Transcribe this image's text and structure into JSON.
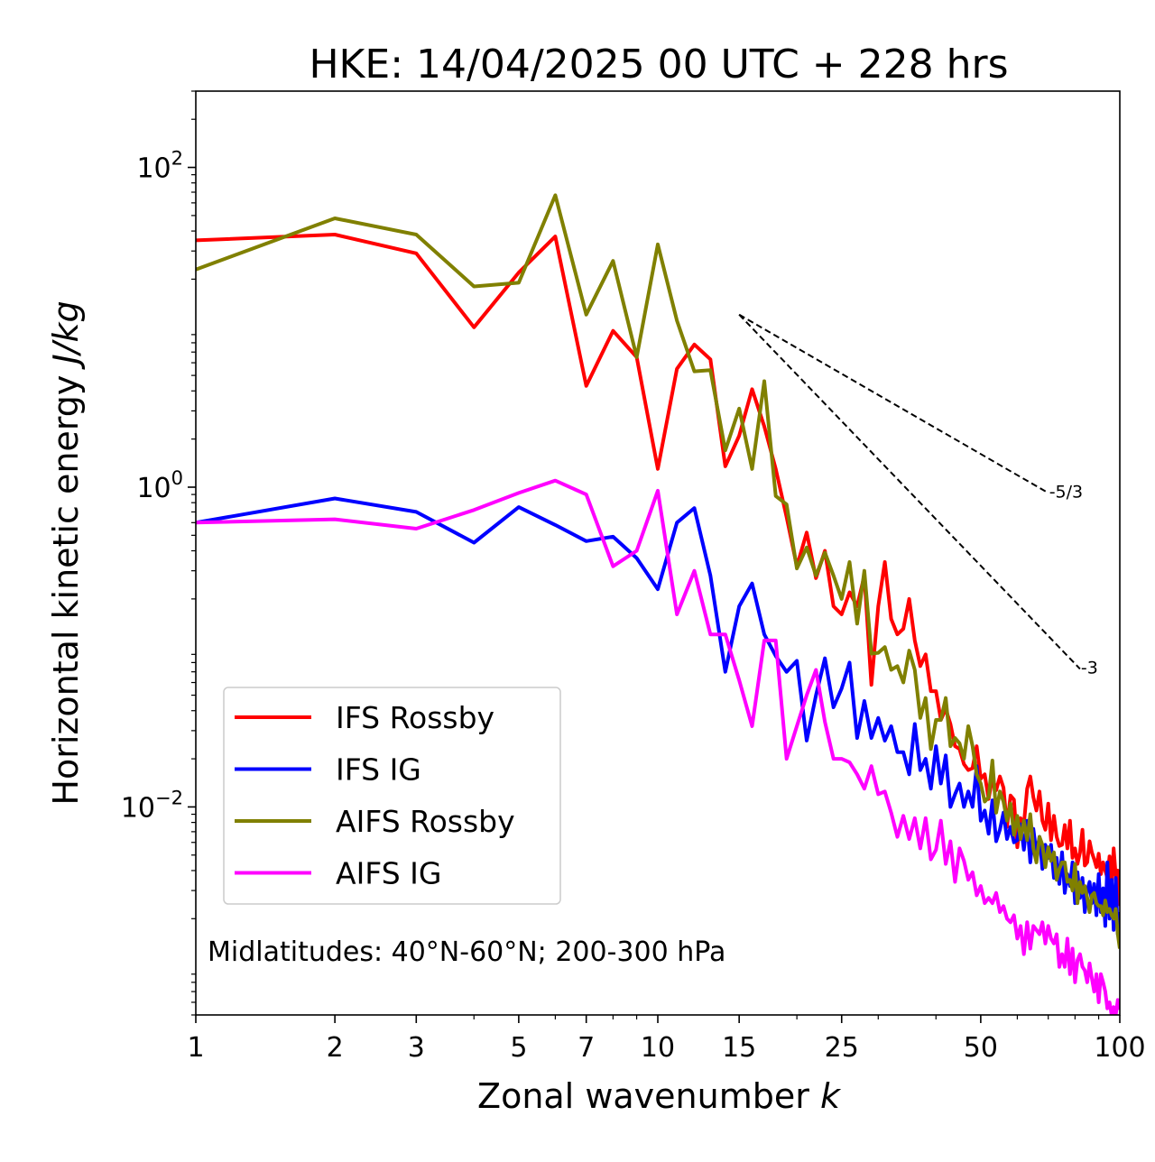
{
  "chart_data": {
    "type": "line",
    "title": "HKE: 14/04/2025 00 UTC + 228 hrs",
    "xlabel": "Zonal wavenumber",
    "xlabel_var": "k",
    "ylabel": "Horizontal kinetic energy",
    "ylabel_units": "J/kg",
    "xscale": "log",
    "yscale": "log",
    "xlim": [
      1,
      100
    ],
    "ylim": [
      0.0005,
      300
    ],
    "xticks": [
      1,
      2,
      3,
      5,
      7,
      10,
      15,
      25,
      50,
      100
    ],
    "xtick_labels": [
      "1",
      "2",
      "3",
      "5",
      "7",
      "10",
      "15",
      "25",
      "50",
      "100"
    ],
    "yticks": [
      {
        "value": 100,
        "base": "10",
        "exp": "2"
      },
      {
        "value": 1,
        "base": "10",
        "exp": "0"
      },
      {
        "value": 0.01,
        "base": "10",
        "exp": "−2"
      }
    ],
    "annotation": "Midlatitudes: 40°N-60°N; 200-300 hPa",
    "legend_position": "lower-left",
    "reference_lines": [
      {
        "label": "-5/3",
        "x": [
          15,
          70
        ],
        "y": [
          12,
          0.92
        ],
        "color": "#000000"
      },
      {
        "label": "-3",
        "x": [
          15,
          82
        ],
        "y": [
          12,
          0.073
        ],
        "color": "#000000"
      }
    ],
    "series": [
      {
        "name": "IFS Rossby",
        "color": "#ff0000",
        "x": [
          1,
          2,
          3,
          4,
          5,
          6,
          7,
          8,
          9,
          10,
          11,
          12,
          13,
          14,
          15,
          16,
          17,
          18,
          19,
          20,
          21,
          22,
          23,
          24,
          25,
          26,
          27,
          28,
          29,
          30,
          31,
          32,
          33,
          34,
          35,
          36,
          37,
          38,
          39,
          40,
          41,
          42,
          43,
          44,
          45,
          46,
          47,
          48,
          49,
          50,
          51,
          52,
          53,
          54,
          55,
          56,
          57,
          58,
          59,
          60,
          61,
          62,
          63,
          64,
          65,
          66,
          67,
          68,
          69,
          70,
          71,
          72,
          73,
          74,
          75,
          76,
          77,
          78,
          79,
          80,
          81,
          82,
          83,
          84,
          85,
          86,
          87,
          88,
          89,
          90,
          91,
          92,
          93,
          94,
          95,
          96,
          97,
          98,
          99,
          100
        ],
        "y": [
          35,
          38,
          29,
          10,
          22,
          37,
          4.3,
          9.5,
          6.5,
          1.3,
          5.5,
          7.8,
          6.3,
          1.35,
          2.1,
          4.1,
          2.4,
          1.3,
          0.65,
          0.32,
          0.52,
          0.27,
          0.4,
          0.18,
          0.16,
          0.22,
          0.18,
          0.28,
          0.058,
          0.18,
          0.34,
          0.15,
          0.12,
          0.13,
          0.2,
          0.11,
          0.076,
          0.09,
          0.053,
          0.053,
          0.035,
          0.041,
          0.033,
          0.024,
          0.023,
          0.0185,
          0.017,
          0.0175,
          0.024,
          0.015,
          0.016,
          0.0112,
          0.0152,
          0.0127,
          0.0155,
          0.0132,
          0.0075,
          0.0118,
          0.0111,
          0.0056,
          0.0085,
          0.0078,
          0.013,
          0.0155,
          0.0115,
          0.0095,
          0.0125,
          0.0082,
          0.0072,
          0.0105,
          0.0062,
          0.0088,
          0.0065,
          0.0057,
          0.0058,
          0.0077,
          0.0055,
          0.0082,
          0.0048,
          0.0055,
          0.0044,
          0.0052,
          0.0072,
          0.0043,
          0.0045,
          0.0061,
          0.0052,
          0.0047,
          0.0042,
          0.0051,
          0.0038,
          0.0045,
          0.004,
          0.0036,
          0.0049,
          0.0033,
          0.0055,
          0.0037,
          0.004,
          0.0024
        ]
      },
      {
        "name": "IFS IG",
        "color": "#0000ff",
        "x": [
          1,
          2,
          3,
          4,
          5,
          6,
          7,
          8,
          9,
          10,
          11,
          12,
          13,
          14,
          15,
          16,
          17,
          18,
          19,
          20,
          21,
          22,
          23,
          24,
          25,
          26,
          27,
          28,
          29,
          30,
          31,
          32,
          33,
          34,
          35,
          36,
          37,
          38,
          39,
          40,
          41,
          42,
          43,
          44,
          45,
          46,
          47,
          48,
          49,
          50,
          51,
          52,
          53,
          54,
          55,
          56,
          57,
          58,
          59,
          60,
          61,
          62,
          63,
          64,
          65,
          66,
          67,
          68,
          69,
          70,
          71,
          72,
          73,
          74,
          75,
          76,
          77,
          78,
          79,
          80,
          81,
          82,
          83,
          84,
          85,
          86,
          87,
          88,
          89,
          90,
          91,
          92,
          93,
          94,
          95,
          96,
          97,
          98,
          99,
          100
        ],
        "y": [
          0.6,
          0.85,
          0.7,
          0.45,
          0.75,
          0.58,
          0.46,
          0.49,
          0.36,
          0.23,
          0.6,
          0.74,
          0.28,
          0.07,
          0.18,
          0.25,
          0.12,
          0.088,
          0.07,
          0.082,
          0.026,
          0.05,
          0.085,
          0.042,
          0.055,
          0.08,
          0.027,
          0.046,
          0.027,
          0.036,
          0.026,
          0.032,
          0.022,
          0.022,
          0.016,
          0.033,
          0.017,
          0.02,
          0.013,
          0.024,
          0.014,
          0.021,
          0.01,
          0.012,
          0.014,
          0.01,
          0.0125,
          0.01,
          0.018,
          0.0082,
          0.0095,
          0.0068,
          0.011,
          0.0061,
          0.0072,
          0.0092,
          0.0063,
          0.0075,
          0.006,
          0.0062,
          0.0078,
          0.0054,
          0.0082,
          0.0045,
          0.0073,
          0.0051,
          0.0065,
          0.0041,
          0.0058,
          0.0048,
          0.0058,
          0.0036,
          0.0048,
          0.0033,
          0.0052,
          0.0029,
          0.0038,
          0.0032,
          0.0045,
          0.0025,
          0.0039,
          0.0027,
          0.0036,
          0.0022,
          0.003,
          0.0034,
          0.0025,
          0.0033,
          0.0021,
          0.0038,
          0.0022,
          0.0031,
          0.0018,
          0.0045,
          0.002,
          0.0035,
          0.0017,
          0.0036,
          0.0016,
          0.0022
        ]
      },
      {
        "name": "AIFS Rossby",
        "color": "#808000",
        "x": [
          1,
          2,
          3,
          4,
          5,
          6,
          7,
          8,
          9,
          10,
          11,
          12,
          13,
          14,
          15,
          16,
          17,
          18,
          19,
          20,
          21,
          22,
          23,
          24,
          25,
          26,
          27,
          28,
          29,
          30,
          31,
          32,
          33,
          34,
          35,
          36,
          37,
          38,
          39,
          40,
          41,
          42,
          43,
          44,
          45,
          46,
          47,
          48,
          49,
          50,
          51,
          52,
          53,
          54,
          55,
          56,
          57,
          58,
          59,
          60,
          61,
          62,
          63,
          64,
          65,
          66,
          67,
          68,
          69,
          70,
          71,
          72,
          73,
          74,
          75,
          76,
          77,
          78,
          79,
          80,
          81,
          82,
          83,
          84,
          85,
          86,
          87,
          88,
          89,
          90,
          91,
          92,
          93,
          94,
          95,
          96,
          97,
          98,
          99,
          100
        ],
        "y": [
          23,
          48,
          38,
          18,
          19,
          67,
          12,
          26,
          6.5,
          33,
          11,
          5.3,
          5.4,
          1.7,
          3.1,
          1.3,
          4.6,
          0.88,
          0.78,
          0.31,
          0.42,
          0.28,
          0.39,
          0.28,
          0.2,
          0.34,
          0.14,
          0.3,
          0.091,
          0.092,
          0.1,
          0.072,
          0.076,
          0.06,
          0.095,
          0.072,
          0.036,
          0.048,
          0.023,
          0.035,
          0.035,
          0.048,
          0.024,
          0.027,
          0.025,
          0.02,
          0.032,
          0.024,
          0.016,
          0.014,
          0.0108,
          0.0115,
          0.0195,
          0.0092,
          0.0125,
          0.0108,
          0.0082,
          0.0105,
          0.0067,
          0.0088,
          0.0063,
          0.0082,
          0.0062,
          0.009,
          0.0055,
          0.0045,
          0.0065,
          0.0058,
          0.0042,
          0.0056,
          0.0046,
          0.0052,
          0.0035,
          0.0041,
          0.0045,
          0.0045,
          0.0034,
          0.0035,
          0.003,
          0.0044,
          0.0025,
          0.0034,
          0.0029,
          0.0032,
          0.0027,
          0.0022,
          0.0028,
          0.0029,
          0.0025,
          0.0024,
          0.0024,
          0.0021,
          0.0026,
          0.0022,
          0.0023,
          0.0021,
          0.002,
          0.0023,
          0.0016,
          0.0013
        ]
      },
      {
        "name": "AIFS IG",
        "color": "#ff00ff",
        "x": [
          1,
          2,
          3,
          4,
          5,
          6,
          7,
          8,
          9,
          10,
          11,
          12,
          13,
          14,
          15,
          16,
          17,
          18,
          19,
          20,
          21,
          22,
          23,
          24,
          25,
          26,
          27,
          28,
          29,
          30,
          31,
          32,
          33,
          34,
          35,
          36,
          37,
          38,
          39,
          40,
          41,
          42,
          43,
          44,
          45,
          46,
          47,
          48,
          49,
          50,
          51,
          52,
          53,
          54,
          55,
          56,
          57,
          58,
          59,
          60,
          61,
          62,
          63,
          64,
          65,
          66,
          67,
          68,
          69,
          70,
          71,
          72,
          73,
          74,
          75,
          76,
          77,
          78,
          79,
          80,
          81,
          82,
          83,
          84,
          85,
          86,
          87,
          88,
          89,
          90,
          91,
          92,
          93,
          94,
          95,
          96,
          97,
          98,
          99,
          100
        ],
        "y": [
          0.6,
          0.63,
          0.55,
          0.72,
          0.92,
          1.1,
          0.9,
          0.32,
          0.4,
          0.95,
          0.16,
          0.3,
          0.12,
          0.12,
          0.062,
          0.032,
          0.11,
          0.11,
          0.02,
          0.032,
          0.05,
          0.072,
          0.034,
          0.02,
          0.02,
          0.019,
          0.016,
          0.013,
          0.018,
          0.012,
          0.0125,
          0.0092,
          0.0065,
          0.0088,
          0.0063,
          0.0085,
          0.0055,
          0.0085,
          0.0047,
          0.0054,
          0.0082,
          0.0044,
          0.0061,
          0.0034,
          0.0055,
          0.0046,
          0.0035,
          0.0039,
          0.0028,
          0.0032,
          0.0025,
          0.0027,
          0.0025,
          0.0029,
          0.0022,
          0.0024,
          0.002,
          0.0019,
          0.0021,
          0.0015,
          0.0018,
          0.0012,
          0.0019,
          0.0013,
          0.0018,
          0.0017,
          0.0016,
          0.0019,
          0.0014,
          0.0018,
          0.0015,
          0.0014,
          0.0016,
          0.001,
          0.0012,
          0.001,
          0.0015,
          0.0009,
          0.0013,
          0.0008,
          0.0011,
          0.0012,
          0.001,
          0.00095,
          0.0008,
          0.00105,
          0.00085,
          0.0007,
          0.0009,
          0.0006,
          0.0009,
          0.0008,
          0.0007,
          0.00055,
          0.0006,
          0.0005,
          0.00056,
          0.0005,
          0.00062,
          0.00054
        ]
      }
    ]
  }
}
